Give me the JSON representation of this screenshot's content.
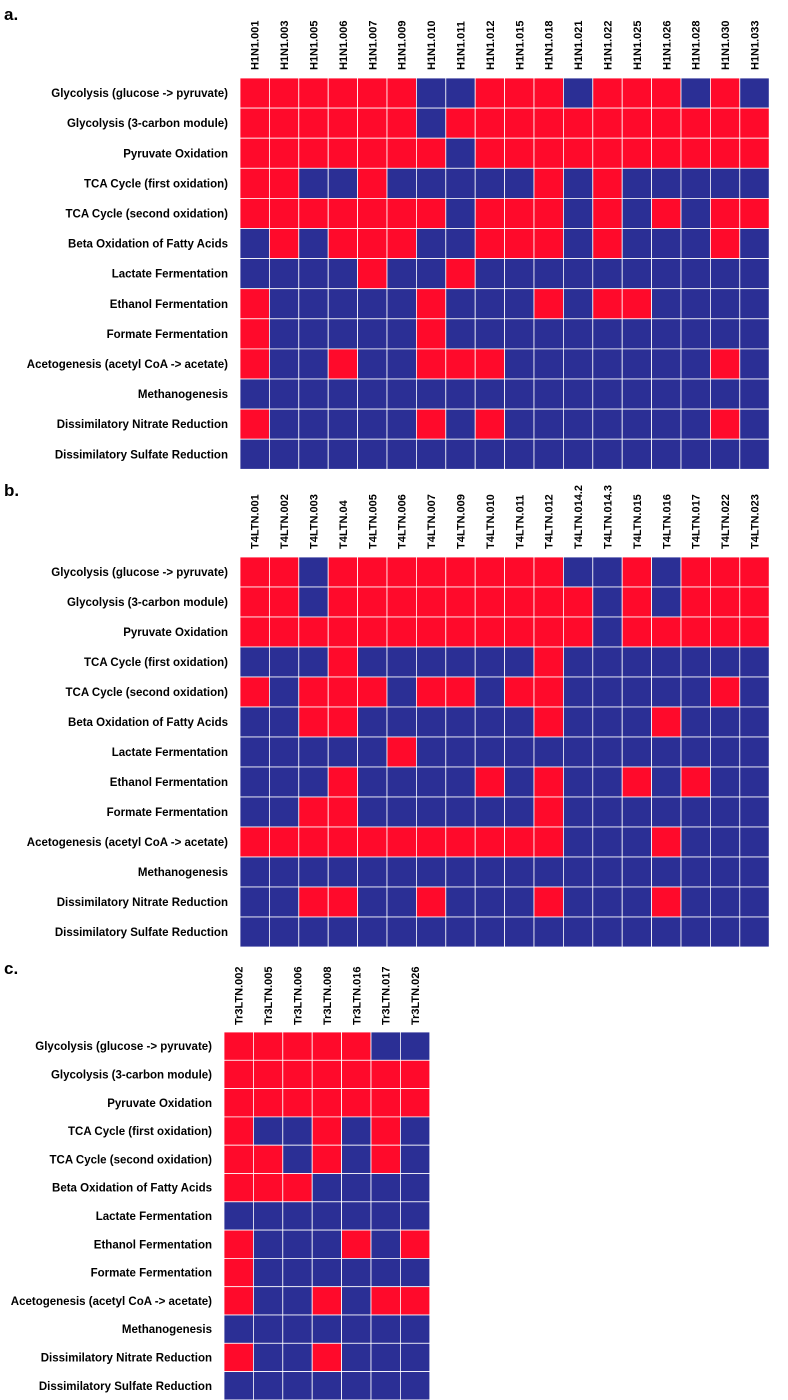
{
  "colors": {
    "present": "#ff0a2b",
    "absent": "#2b2f95"
  },
  "chart_data": [
    {
      "type": "heatmap",
      "panel_label": "a.",
      "columns": [
        "H1N1.001",
        "H1N1.003",
        "H1N1.005",
        "H1N1.006",
        "H1N1.007",
        "H1N1.009",
        "H1N1.010",
        "H1N1.011",
        "H1N1.012",
        "H1N1.015",
        "H1N1.018",
        "H1N1.021",
        "H1N1.022",
        "H1N1.025",
        "H1N1.026",
        "H1N1.028",
        "H1N1.030",
        "H1N1.033"
      ],
      "rows": [
        "Glycolysis (glucose -> pyruvate)",
        "Glycolysis (3-carbon module)",
        "Pyruvate Oxidation",
        "TCA Cycle (first oxidation)",
        "TCA Cycle (second oxidation)",
        "Beta Oxidation of Fatty Acids",
        "Lactate Fermentation",
        "Ethanol Fermentation",
        "Formate Fermentation",
        "Acetogenesis (acetyl CoA -> acetate)",
        "Methanogenesis",
        "Dissimilatory Nitrate Reduction",
        "Dissimilatory Sulfate Reduction"
      ],
      "values": [
        [
          1,
          1,
          1,
          1,
          1,
          1,
          0,
          0,
          1,
          1,
          1,
          0,
          1,
          1,
          1,
          0,
          1,
          0
        ],
        [
          1,
          1,
          1,
          1,
          1,
          1,
          0,
          1,
          1,
          1,
          1,
          1,
          1,
          1,
          1,
          1,
          1,
          1
        ],
        [
          1,
          1,
          1,
          1,
          1,
          1,
          1,
          0,
          1,
          1,
          1,
          1,
          1,
          1,
          1,
          1,
          1,
          1
        ],
        [
          1,
          1,
          0,
          0,
          1,
          0,
          0,
          0,
          0,
          0,
          1,
          0,
          1,
          0,
          0,
          0,
          0,
          0
        ],
        [
          1,
          1,
          1,
          1,
          1,
          1,
          1,
          0,
          1,
          1,
          1,
          0,
          1,
          0,
          1,
          0,
          1,
          1
        ],
        [
          0,
          1,
          0,
          1,
          1,
          1,
          0,
          0,
          1,
          1,
          1,
          0,
          1,
          0,
          0,
          0,
          1,
          0
        ],
        [
          0,
          0,
          0,
          0,
          1,
          0,
          0,
          1,
          0,
          0,
          0,
          0,
          0,
          0,
          0,
          0,
          0,
          0
        ],
        [
          1,
          0,
          0,
          0,
          0,
          0,
          1,
          0,
          0,
          0,
          1,
          0,
          1,
          1,
          0,
          0,
          0,
          0
        ],
        [
          1,
          0,
          0,
          0,
          0,
          0,
          1,
          0,
          0,
          0,
          0,
          0,
          0,
          0,
          0,
          0,
          0,
          0
        ],
        [
          1,
          0,
          0,
          1,
          0,
          0,
          1,
          1,
          1,
          0,
          0,
          0,
          0,
          0,
          0,
          0,
          1,
          0
        ],
        [
          0,
          0,
          0,
          0,
          0,
          0,
          0,
          0,
          0,
          0,
          0,
          0,
          0,
          0,
          0,
          0,
          0,
          0
        ],
        [
          1,
          0,
          0,
          0,
          0,
          0,
          1,
          0,
          1,
          0,
          0,
          0,
          0,
          0,
          0,
          0,
          1,
          0
        ],
        [
          0,
          0,
          0,
          0,
          0,
          0,
          0,
          0,
          0,
          0,
          0,
          0,
          0,
          0,
          0,
          0,
          0,
          0
        ]
      ]
    },
    {
      "type": "heatmap",
      "panel_label": "b.",
      "columns": [
        "T4LTN.001",
        "T4LTN.002",
        "T4LTN.003",
        "T4LTN.04",
        "T4LTN.005",
        "T4LTN.006",
        "T4LTN.007",
        "T4LTN.009",
        "T4LTN.010",
        "T4LTN.011",
        "T4LTN.012",
        "T4LTN.014.2",
        "T4LTN.014.3",
        "T4LTN.015",
        "T4LTN.016",
        "T4LTN.017",
        "T4LTN.022",
        "T4LTN.023"
      ],
      "rows": [
        "Glycolysis (glucose -> pyruvate)",
        "Glycolysis (3-carbon module)",
        "Pyruvate Oxidation",
        "TCA Cycle (first oxidation)",
        "TCA Cycle (second oxidation)",
        "Beta Oxidation of Fatty Acids",
        "Lactate Fermentation",
        "Ethanol Fermentation",
        "Formate Fermentation",
        "Acetogenesis (acetyl CoA -> acetate)",
        "Methanogenesis",
        "Dissimilatory Nitrate Reduction",
        "Dissimilatory Sulfate Reduction"
      ],
      "values": [
        [
          1,
          1,
          0,
          1,
          1,
          1,
          1,
          1,
          1,
          1,
          1,
          0,
          0,
          1,
          0,
          1,
          1,
          1
        ],
        [
          1,
          1,
          0,
          1,
          1,
          1,
          1,
          1,
          1,
          1,
          1,
          1,
          0,
          1,
          0,
          1,
          1,
          1
        ],
        [
          1,
          1,
          1,
          1,
          1,
          1,
          1,
          1,
          1,
          1,
          1,
          1,
          0,
          1,
          1,
          1,
          1,
          1
        ],
        [
          0,
          0,
          0,
          1,
          0,
          0,
          0,
          0,
          0,
          0,
          1,
          0,
          0,
          0,
          0,
          0,
          0,
          0
        ],
        [
          1,
          0,
          1,
          1,
          1,
          0,
          1,
          1,
          0,
          1,
          1,
          0,
          0,
          0,
          0,
          0,
          1,
          0
        ],
        [
          0,
          0,
          1,
          1,
          0,
          0,
          0,
          0,
          0,
          0,
          1,
          0,
          0,
          0,
          1,
          0,
          0,
          0
        ],
        [
          0,
          0,
          0,
          0,
          0,
          1,
          0,
          0,
          0,
          0,
          0,
          0,
          0,
          0,
          0,
          0,
          0,
          0
        ],
        [
          0,
          0,
          0,
          1,
          0,
          0,
          0,
          0,
          1,
          0,
          1,
          0,
          0,
          1,
          0,
          1,
          0,
          0
        ],
        [
          0,
          0,
          1,
          1,
          0,
          0,
          0,
          0,
          0,
          0,
          1,
          0,
          0,
          0,
          0,
          0,
          0,
          0
        ],
        [
          1,
          1,
          1,
          1,
          1,
          1,
          1,
          1,
          1,
          1,
          1,
          0,
          0,
          0,
          1,
          0,
          0,
          0
        ],
        [
          0,
          0,
          0,
          0,
          0,
          0,
          0,
          0,
          0,
          0,
          0,
          0,
          0,
          0,
          0,
          0,
          0,
          0
        ],
        [
          0,
          0,
          1,
          1,
          0,
          0,
          1,
          0,
          0,
          0,
          1,
          0,
          0,
          0,
          1,
          0,
          0,
          0
        ],
        [
          0,
          0,
          0,
          0,
          0,
          0,
          0,
          0,
          0,
          0,
          0,
          0,
          0,
          0,
          0,
          0,
          0,
          0
        ]
      ]
    },
    {
      "type": "heatmap",
      "panel_label": "c.",
      "columns": [
        "Tr3LTN.002",
        "Tr3LTN.005",
        "Tr3LTN.006",
        "Tr3LTN.008",
        "Tr3LTN.016",
        "Tr3LTN.017",
        "Tr3LTN.026"
      ],
      "rows": [
        "Glycolysis (glucose -> pyruvate)",
        "Glycolysis (3-carbon module)",
        "Pyruvate Oxidation",
        "TCA Cycle (first oxidation)",
        "TCA Cycle (second oxidation)",
        "Beta Oxidation of Fatty Acids",
        "Lactate Fermentation",
        "Ethanol Fermentation",
        "Formate Fermentation",
        "Acetogenesis (acetyl CoA -> acetate)",
        "Methanogenesis",
        "Dissimilatory Nitrate Reduction",
        "Dissimilatory Sulfate Reduction"
      ],
      "values": [
        [
          1,
          1,
          1,
          1,
          1,
          0,
          0
        ],
        [
          1,
          1,
          1,
          1,
          1,
          1,
          1
        ],
        [
          1,
          1,
          1,
          1,
          1,
          1,
          1
        ],
        [
          1,
          0,
          0,
          1,
          0,
          1,
          0
        ],
        [
          1,
          1,
          0,
          1,
          0,
          1,
          0
        ],
        [
          1,
          1,
          1,
          0,
          0,
          0,
          0
        ],
        [
          0,
          0,
          0,
          0,
          0,
          0,
          0
        ],
        [
          1,
          0,
          0,
          0,
          1,
          0,
          1
        ],
        [
          1,
          0,
          0,
          0,
          0,
          0,
          0
        ],
        [
          1,
          0,
          0,
          1,
          0,
          1,
          1
        ],
        [
          0,
          0,
          0,
          0,
          0,
          0,
          0
        ],
        [
          1,
          0,
          0,
          1,
          0,
          0,
          0
        ],
        [
          0,
          0,
          0,
          0,
          0,
          0,
          0
        ]
      ]
    }
  ]
}
